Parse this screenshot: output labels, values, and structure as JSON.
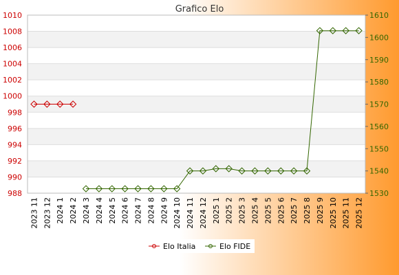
{
  "chart_data": {
    "type": "line",
    "title": "Grafico Elo",
    "grid": true,
    "legend_position": "bottom",
    "categories": [
      "2023 11",
      "2023 12",
      "2024 1",
      "2024 2",
      "2024 3",
      "2024 4",
      "2024 5",
      "2024 6",
      "2024 7",
      "2024 8",
      "2024 9",
      "2024 10",
      "2024 11",
      "2024 12",
      "2025 1",
      "2025 2",
      "2025 3",
      "2025 4",
      "2025 5",
      "2025 6",
      "2025 7",
      "2025 8",
      "2025 9",
      "2025 10",
      "2025 11",
      "2025 12"
    ],
    "y_left": {
      "ylim": [
        988,
        1010
      ],
      "ticks": [
        988,
        990,
        992,
        994,
        996,
        998,
        1000,
        1002,
        1004,
        1006,
        1008,
        1010
      ],
      "color": "#cc0000"
    },
    "y_right": {
      "ylim": [
        1530,
        1610
      ],
      "ticks": [
        1530,
        1540,
        1550,
        1560,
        1570,
        1580,
        1590,
        1600,
        1610
      ],
      "color": "#336600"
    },
    "series": [
      {
        "name": "Elo Italia",
        "axis": "left",
        "color": "#cc0000",
        "values": [
          999,
          999,
          999,
          999,
          null,
          null,
          null,
          null,
          null,
          null,
          null,
          null,
          null,
          null,
          null,
          null,
          null,
          null,
          null,
          null,
          null,
          null,
          null,
          null,
          null,
          null
        ]
      },
      {
        "name": "Elo FIDE",
        "axis": "right",
        "color": "#336600",
        "values": [
          null,
          null,
          null,
          null,
          1532,
          1532,
          1532,
          1532,
          1532,
          1532,
          1532,
          1532,
          1540,
          1540,
          1541,
          1541,
          1540,
          1540,
          1540,
          1540,
          1540,
          1540,
          1603,
          1603,
          1603,
          1603
        ]
      }
    ]
  }
}
